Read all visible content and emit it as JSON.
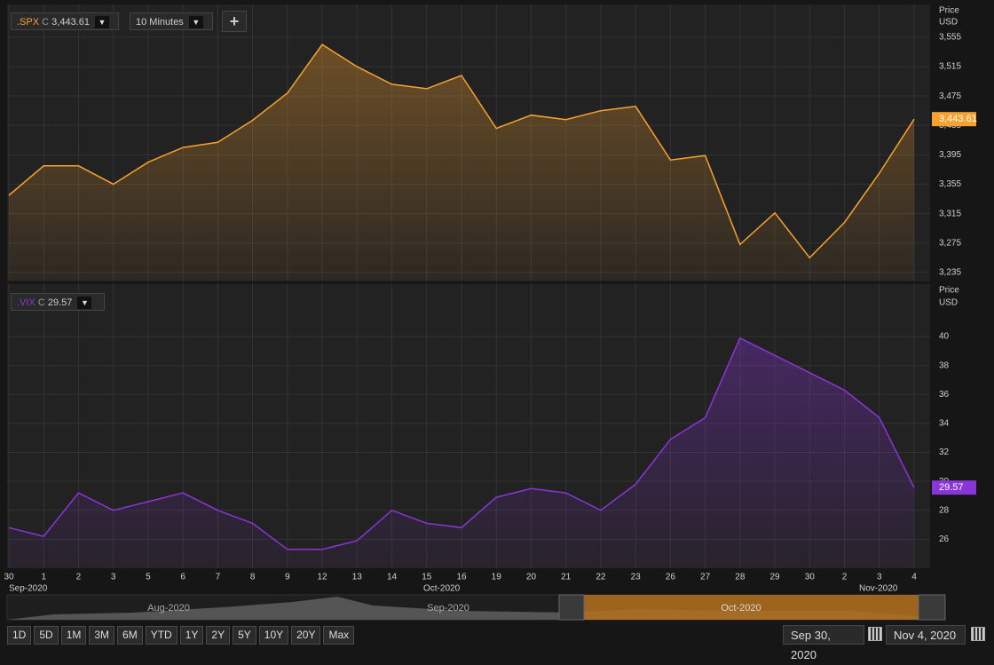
{
  "toolbar": {
    "symbol": ".SPX",
    "close_flag": "C",
    "price": "3,443.61",
    "interval": "10 Minutes",
    "add": "+"
  },
  "chart_data": [
    {
      "type": "line",
      "name": ".SPX",
      "y_axis_label": "Price",
      "y_axis_unit": "USD",
      "color": "#f7a12e",
      "values": [
        3340,
        3380,
        3380,
        3355,
        3385,
        3405,
        3412,
        3442,
        3479,
        3545,
        3515,
        3491,
        3485,
        3503,
        3431,
        3449,
        3443,
        3455,
        3461,
        3388,
        3394,
        3273,
        3316,
        3255,
        3303,
        3370,
        3443.61
      ],
      "last_value_label": "3,443.61",
      "ylim": [
        3224,
        3596
      ],
      "yticks": [
        {
          "value": 3235,
          "label": "3,235"
        },
        {
          "value": 3275,
          "label": "3,275"
        },
        {
          "value": 3315,
          "label": "3,315"
        },
        {
          "value": 3355,
          "label": "3,355"
        },
        {
          "value": 3395,
          "label": "3,395"
        },
        {
          "value": 3435,
          "label": "3,435"
        },
        {
          "value": 3475,
          "label": "3,475"
        },
        {
          "value": 3515,
          "label": "3,515"
        },
        {
          "value": 3555,
          "label": "3,555"
        }
      ],
      "grid": true
    },
    {
      "type": "line",
      "name": ".VIX",
      "close_flag": "C",
      "price": "29.57",
      "y_axis_label": "Price",
      "y_axis_unit": "USD",
      "color": "#8a35d8",
      "categories": [
        "30",
        "1",
        "2",
        "3",
        "5",
        "6",
        "7",
        "8",
        "9",
        "12",
        "13",
        "14",
        "15",
        "16",
        "19",
        "20",
        "21",
        "22",
        "23",
        "26",
        "27",
        "28",
        "29",
        "30",
        "2",
        "3",
        "4"
      ],
      "values": [
        26.8,
        26.2,
        29.2,
        28,
        28.6,
        29.2,
        28,
        27.1,
        25.3,
        25.3,
        25.9,
        28,
        27.1,
        26.8,
        28.9,
        29.5,
        29.2,
        28,
        29.8,
        32.9,
        34.4,
        39.9,
        38.7,
        37.5,
        36.3,
        34.4,
        29.57
      ],
      "last_value_label": "29.57",
      "ylim": [
        24,
        43.5
      ],
      "yticks": [
        26,
        28,
        30,
        32,
        34,
        36,
        38,
        40
      ],
      "grid": true
    }
  ],
  "month_labels": [
    "Sep-2020",
    "Oct-2020",
    "Nov-2020"
  ],
  "navigator": {
    "labels": [
      "Aug-2020",
      "Sep-2020",
      "Oct-2020"
    ]
  },
  "range_buttons": [
    "1D",
    "5D",
    "1M",
    "3M",
    "6M",
    "YTD",
    "1Y",
    "2Y",
    "5Y",
    "10Y",
    "20Y",
    "Max"
  ],
  "date_range": {
    "start": "Sep 30, 2020",
    "end": "Nov 4, 2020"
  }
}
